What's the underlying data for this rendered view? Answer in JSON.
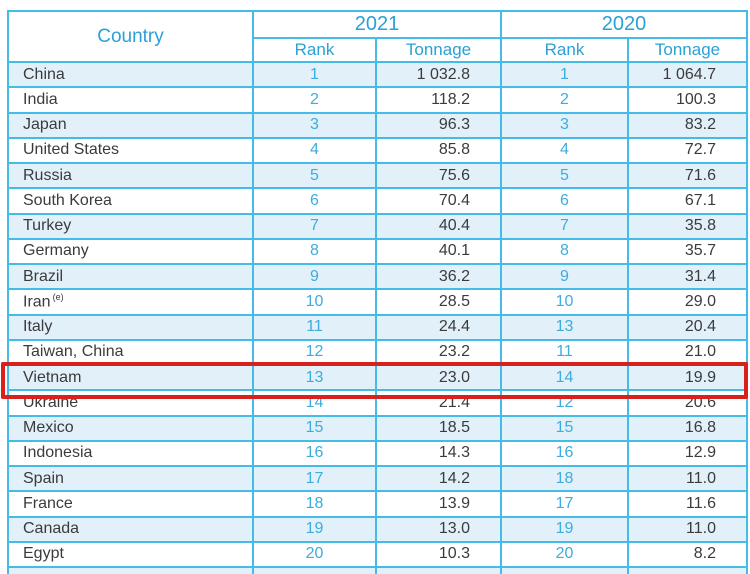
{
  "table": {
    "header": {
      "country_label": "Country",
      "year_groups": [
        {
          "year": "2021",
          "columns": [
            "Rank",
            "Tonnage"
          ]
        },
        {
          "year": "2020",
          "columns": [
            "Rank",
            "Tonnage"
          ]
        }
      ]
    },
    "rows": [
      {
        "country": "China",
        "sup": "",
        "rank_2021": "1",
        "tonnage_2021": "1 032.8",
        "rank_2020": "1",
        "tonnage_2020": "1 064.7",
        "shaded": true,
        "highlighted": false
      },
      {
        "country": "India",
        "sup": "",
        "rank_2021": "2",
        "tonnage_2021": "118.2",
        "rank_2020": "2",
        "tonnage_2020": "100.3",
        "shaded": false,
        "highlighted": false
      },
      {
        "country": "Japan",
        "sup": "",
        "rank_2021": "3",
        "tonnage_2021": "96.3",
        "rank_2020": "3",
        "tonnage_2020": "83.2",
        "shaded": true,
        "highlighted": false
      },
      {
        "country": "United States",
        "sup": "",
        "rank_2021": "4",
        "tonnage_2021": "85.8",
        "rank_2020": "4",
        "tonnage_2020": "72.7",
        "shaded": false,
        "highlighted": false
      },
      {
        "country": "Russia",
        "sup": "",
        "rank_2021": "5",
        "tonnage_2021": "75.6",
        "rank_2020": "5",
        "tonnage_2020": "71.6",
        "shaded": true,
        "highlighted": false
      },
      {
        "country": "South Korea",
        "sup": "",
        "rank_2021": "6",
        "tonnage_2021": "70.4",
        "rank_2020": "6",
        "tonnage_2020": "67.1",
        "shaded": false,
        "highlighted": false
      },
      {
        "country": "Turkey",
        "sup": "",
        "rank_2021": "7",
        "tonnage_2021": "40.4",
        "rank_2020": "7",
        "tonnage_2020": "35.8",
        "shaded": true,
        "highlighted": false
      },
      {
        "country": "Germany",
        "sup": "",
        "rank_2021": "8",
        "tonnage_2021": "40.1",
        "rank_2020": "8",
        "tonnage_2020": "35.7",
        "shaded": false,
        "highlighted": false
      },
      {
        "country": "Brazil",
        "sup": "",
        "rank_2021": "9",
        "tonnage_2021": "36.2",
        "rank_2020": "9",
        "tonnage_2020": "31.4",
        "shaded": true,
        "highlighted": false
      },
      {
        "country": "Iran",
        "sup": "(e)",
        "rank_2021": "10",
        "tonnage_2021": "28.5",
        "rank_2020": "10",
        "tonnage_2020": "29.0",
        "shaded": false,
        "highlighted": false
      },
      {
        "country": "Italy",
        "sup": "",
        "rank_2021": "11",
        "tonnage_2021": "24.4",
        "rank_2020": "13",
        "tonnage_2020": "20.4",
        "shaded": true,
        "highlighted": false
      },
      {
        "country": "Taiwan, China",
        "sup": "",
        "rank_2021": "12",
        "tonnage_2021": "23.2",
        "rank_2020": "11",
        "tonnage_2020": "21.0",
        "shaded": false,
        "highlighted": false
      },
      {
        "country": "Vietnam",
        "sup": "",
        "rank_2021": "13",
        "tonnage_2021": "23.0",
        "rank_2020": "14",
        "tonnage_2020": "19.9",
        "shaded": true,
        "highlighted": true
      },
      {
        "country": "Ukraine",
        "sup": "",
        "rank_2021": "14",
        "tonnage_2021": "21.4",
        "rank_2020": "12",
        "tonnage_2020": "20.6",
        "shaded": false,
        "highlighted": false
      },
      {
        "country": "Mexico",
        "sup": "",
        "rank_2021": "15",
        "tonnage_2021": "18.5",
        "rank_2020": "15",
        "tonnage_2020": "16.8",
        "shaded": true,
        "highlighted": false
      },
      {
        "country": "Indonesia",
        "sup": "",
        "rank_2021": "16",
        "tonnage_2021": "14.3",
        "rank_2020": "16",
        "tonnage_2020": "12.9",
        "shaded": false,
        "highlighted": false
      },
      {
        "country": "Spain",
        "sup": "",
        "rank_2021": "17",
        "tonnage_2021": "14.2",
        "rank_2020": "18",
        "tonnage_2020": "11.0",
        "shaded": true,
        "highlighted": false
      },
      {
        "country": "France",
        "sup": "",
        "rank_2021": "18",
        "tonnage_2021": "13.9",
        "rank_2020": "17",
        "tonnage_2020": "11.6",
        "shaded": false,
        "highlighted": false
      },
      {
        "country": "Canada",
        "sup": "",
        "rank_2021": "19",
        "tonnage_2021": "13.0",
        "rank_2020": "19",
        "tonnage_2020": "11.0",
        "shaded": true,
        "highlighted": false
      },
      {
        "country": "Egypt",
        "sup": "",
        "rank_2021": "20",
        "tonnage_2021": "10.3",
        "rank_2020": "20",
        "tonnage_2020": "8.2",
        "shaded": false,
        "highlighted": false
      }
    ],
    "colors": {
      "border": "#45bce8",
      "header_text": "#2ba0d7",
      "rank_text": "#3badde",
      "body_text": "#3b3b3b",
      "shaded_row_bg": "#e2f0fa",
      "highlight_border": "#d6211c"
    },
    "highlight": {
      "row_country": "Vietnam"
    }
  }
}
